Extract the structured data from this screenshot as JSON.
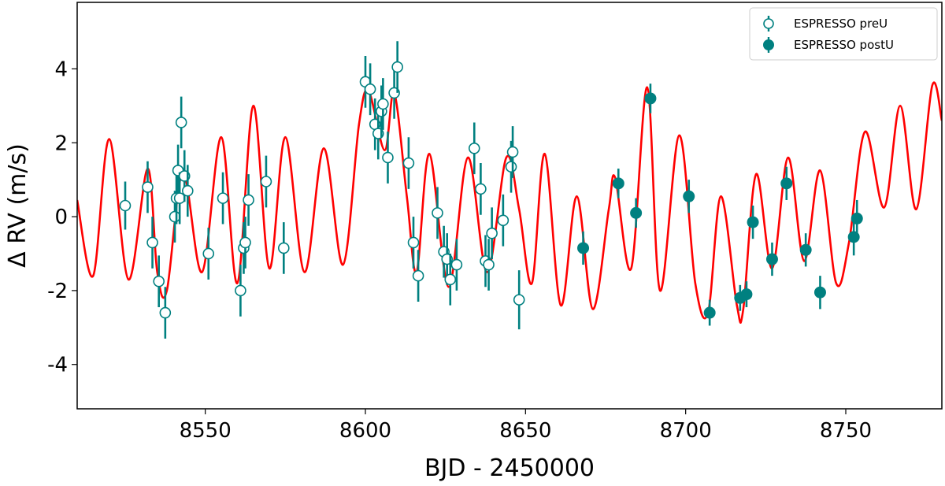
{
  "chart_data": {
    "type": "scatter",
    "xlabel": "BJD - 2450000",
    "ylabel": "Δ RV (m/s)",
    "xlim": [
      8510,
      8780
    ],
    "ylim": [
      -5.2,
      5.8
    ],
    "xticks": [
      8550,
      8600,
      8650,
      8700,
      8750
    ],
    "yticks": [
      -4,
      -2,
      0,
      2,
      4
    ],
    "xtick_labels": [
      "8550",
      "8600",
      "8650",
      "8700",
      "8750"
    ],
    "ytick_labels": [
      "-4",
      "-2",
      "0",
      "2",
      "4"
    ],
    "grid": false,
    "legend_position": "top-right",
    "colors": {
      "points": "#008080",
      "model": "#ff0000",
      "frame": "#000000"
    },
    "series": [
      {
        "name": "ESPRESSO preU",
        "marker": "open-circle",
        "points": [
          {
            "x": 8525,
            "y": 0.3,
            "err": 0.65
          },
          {
            "x": 8532,
            "y": 0.8,
            "err": 0.7
          },
          {
            "x": 8533.5,
            "y": -0.7,
            "err": 0.7
          },
          {
            "x": 8535.5,
            "y": -1.75,
            "err": 0.7
          },
          {
            "x": 8537.5,
            "y": -2.6,
            "err": 0.7
          },
          {
            "x": 8540.5,
            "y": 0.0,
            "err": 0.7
          },
          {
            "x": 8541,
            "y": 0.5,
            "err": 0.7
          },
          {
            "x": 8541.5,
            "y": 1.25,
            "err": 0.7
          },
          {
            "x": 8542,
            "y": 0.5,
            "err": 0.7
          },
          {
            "x": 8542.5,
            "y": 2.55,
            "err": 0.7
          },
          {
            "x": 8543.5,
            "y": 1.1,
            "err": 0.7
          },
          {
            "x": 8544.5,
            "y": 0.7,
            "err": 0.7
          },
          {
            "x": 8551,
            "y": -1.0,
            "err": 0.7
          },
          {
            "x": 8555.5,
            "y": 0.5,
            "err": 0.7
          },
          {
            "x": 8561,
            "y": -2.0,
            "err": 0.7
          },
          {
            "x": 8562,
            "y": -0.85,
            "err": 0.7
          },
          {
            "x": 8562.5,
            "y": -0.7,
            "err": 0.7
          },
          {
            "x": 8563.5,
            "y": 0.45,
            "err": 0.7
          },
          {
            "x": 8569,
            "y": 0.95,
            "err": 0.7
          },
          {
            "x": 8574.5,
            "y": -0.85,
            "err": 0.7
          },
          {
            "x": 8600,
            "y": 3.65,
            "err": 0.7
          },
          {
            "x": 8601.5,
            "y": 3.45,
            "err": 0.7
          },
          {
            "x": 8603,
            "y": 2.5,
            "err": 0.7
          },
          {
            "x": 8604,
            "y": 2.25,
            "err": 0.7
          },
          {
            "x": 8605,
            "y": 2.85,
            "err": 0.7
          },
          {
            "x": 8605.5,
            "y": 3.05,
            "err": 0.7
          },
          {
            "x": 8607,
            "y": 1.6,
            "err": 0.7
          },
          {
            "x": 8609,
            "y": 3.35,
            "err": 0.7
          },
          {
            "x": 8610,
            "y": 4.05,
            "err": 0.7
          },
          {
            "x": 8613.5,
            "y": 1.45,
            "err": 0.7
          },
          {
            "x": 8615,
            "y": -0.7,
            "err": 0.7
          },
          {
            "x": 8616.5,
            "y": -1.6,
            "err": 0.7
          },
          {
            "x": 8622.5,
            "y": 0.1,
            "err": 0.7
          },
          {
            "x": 8624.5,
            "y": -0.95,
            "err": 0.7
          },
          {
            "x": 8625.5,
            "y": -1.15,
            "err": 0.7
          },
          {
            "x": 8626.5,
            "y": -1.7,
            "err": 0.7
          },
          {
            "x": 8628.5,
            "y": -1.3,
            "err": 0.7
          },
          {
            "x": 8634,
            "y": 1.85,
            "err": 0.7
          },
          {
            "x": 8636,
            "y": 0.75,
            "err": 0.7
          },
          {
            "x": 8637.5,
            "y": -1.2,
            "err": 0.7
          },
          {
            "x": 8638.5,
            "y": -1.3,
            "err": 0.7
          },
          {
            "x": 8639.5,
            "y": -0.45,
            "err": 0.7
          },
          {
            "x": 8643,
            "y": -0.1,
            "err": 0.7
          },
          {
            "x": 8645.5,
            "y": 1.35,
            "err": 0.7
          },
          {
            "x": 8646,
            "y": 1.75,
            "err": 0.7
          },
          {
            "x": 8648,
            "y": -2.25,
            "err": 0.8
          }
        ]
      },
      {
        "name": "ESPRESSO postU",
        "marker": "filled-circle",
        "points": [
          {
            "x": 8668,
            "y": -0.85,
            "err": 0.45
          },
          {
            "x": 8679,
            "y": 0.9,
            "err": 0.4
          },
          {
            "x": 8684.5,
            "y": 0.1,
            "err": 0.4
          },
          {
            "x": 8689,
            "y": 3.2,
            "err": 0.4
          },
          {
            "x": 8701,
            "y": 0.55,
            "err": 0.45
          },
          {
            "x": 8707.5,
            "y": -2.6,
            "err": 0.35
          },
          {
            "x": 8717,
            "y": -2.2,
            "err": 0.35
          },
          {
            "x": 8719,
            "y": -2.1,
            "err": 0.35
          },
          {
            "x": 8721,
            "y": -0.15,
            "err": 0.45
          },
          {
            "x": 8727,
            "y": -1.15,
            "err": 0.45
          },
          {
            "x": 8731.5,
            "y": 0.9,
            "err": 0.45
          },
          {
            "x": 8737.5,
            "y": -0.9,
            "err": 0.45
          },
          {
            "x": 8742,
            "y": -2.05,
            "err": 0.45
          },
          {
            "x": 8752.5,
            "y": -0.55,
            "err": 0.5
          },
          {
            "x": 8753.5,
            "y": -0.05,
            "err": 0.5
          }
        ]
      }
    ],
    "model_curve": {
      "type": "line",
      "points": [
        [
          8510,
          0.45
        ],
        [
          8515,
          -1.6
        ],
        [
          8520,
          2.1
        ],
        [
          8526,
          -1.7
        ],
        [
          8532,
          1.3
        ],
        [
          8535,
          -1.5
        ],
        [
          8538,
          -2.0
        ],
        [
          8543,
          1.2
        ],
        [
          8549,
          -1.5
        ],
        [
          8555,
          2.15
        ],
        [
          8560,
          -1.8
        ],
        [
          8565,
          3.0
        ],
        [
          8570,
          -1.4
        ],
        [
          8575,
          2.15
        ],
        [
          8581,
          -1.5
        ],
        [
          8587,
          1.85
        ],
        [
          8593,
          -1.3
        ],
        [
          8598,
          2.5
        ],
        [
          8601,
          3.4
        ],
        [
          8606,
          1.8
        ],
        [
          8609,
          3.35
        ],
        [
          8613,
          0.5
        ],
        [
          8616,
          -1.5
        ],
        [
          8620,
          1.7
        ],
        [
          8626,
          -1.9
        ],
        [
          8632,
          1.6
        ],
        [
          8638,
          -1.5
        ],
        [
          8644,
          1.6
        ],
        [
          8648,
          0.2
        ],
        [
          8652,
          -1.8
        ],
        [
          8656,
          1.7
        ],
        [
          8661,
          -2.4
        ],
        [
          8666,
          0.55
        ],
        [
          8671,
          -2.5
        ],
        [
          8676,
          0.2
        ],
        [
          8678,
          1.05
        ],
        [
          8683,
          -1.4
        ],
        [
          8688,
          3.5
        ],
        [
          8692,
          -2.0
        ],
        [
          8698,
          2.2
        ],
        [
          8703,
          -1.8
        ],
        [
          8707,
          -2.6
        ],
        [
          8711,
          0.55
        ],
        [
          8716,
          -2.4
        ],
        [
          8718,
          -2.5
        ],
        [
          8722,
          1.15
        ],
        [
          8727,
          -1.4
        ],
        [
          8732,
          1.6
        ],
        [
          8737,
          -1.2
        ],
        [
          8742,
          1.25
        ],
        [
          8747,
          -1.8
        ],
        [
          8751,
          -0.7
        ],
        [
          8756,
          2.3
        ],
        [
          8762,
          0.25
        ],
        [
          8767,
          3.0
        ],
        [
          8772,
          0.2
        ],
        [
          8777,
          3.55
        ],
        [
          8780,
          2.6
        ]
      ]
    }
  }
}
